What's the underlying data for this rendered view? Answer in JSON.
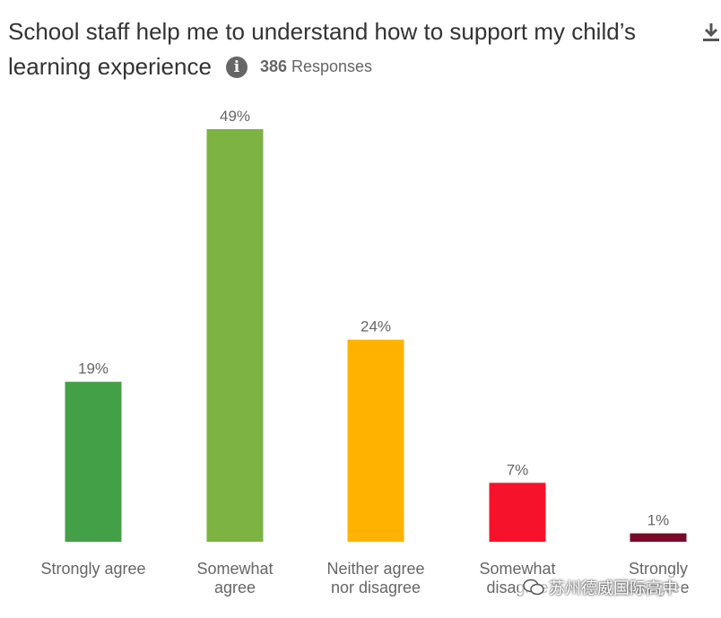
{
  "header": {
    "title": "School staff help me to understand how to support my child’s learning experience",
    "info_icon_glyph": "i",
    "responses_count": "386",
    "responses_label": "Responses"
  },
  "watermark": {
    "text": "苏州德威国际高中"
  },
  "chart_data": {
    "type": "bar",
    "title": "School staff help me to understand how to support my child’s learning experience",
    "unit": "%",
    "categories": [
      [
        "Strongly agree"
      ],
      [
        "Somewhat",
        "agree"
      ],
      [
        "Neither agree",
        "nor disagree"
      ],
      [
        "Somewhat",
        "disagree"
      ],
      [
        "Strongly",
        "disagree"
      ]
    ],
    "values": [
      19,
      49,
      24,
      7,
      1
    ],
    "value_labels": [
      "19%",
      "49%",
      "24%",
      "7%",
      "1%"
    ],
    "colors": [
      "#43A047",
      "#7CB342",
      "#FFB300",
      "#F7122C",
      "#7A0A2A"
    ],
    "xlabel": "",
    "ylabel": "",
    "ylim": [
      0,
      49
    ],
    "grid": false,
    "legend": "none"
  }
}
